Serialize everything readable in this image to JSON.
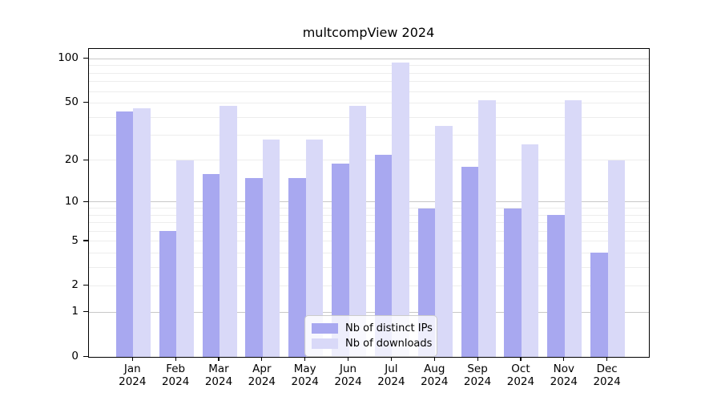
{
  "title": "multcompView 2024",
  "colors": {
    "ips_bar": "#a8a8f0",
    "downloads_bar": "#d9d9f8",
    "grid_minor": "#ededed",
    "grid_major": "#c8c8c8",
    "spine": "#000000",
    "background": "#ffffff"
  },
  "legend": {
    "items": [
      {
        "label": "Nb of distinct IPs",
        "color": "#a8a8f0"
      },
      {
        "label": "Nb of downloads",
        "color": "#d9d9f8"
      }
    ]
  },
  "axes": {
    "y_ticks": [
      0,
      1,
      2,
      5,
      10,
      20,
      50,
      100
    ],
    "x_tick_year": "2024",
    "x_tick_months": [
      "Jan",
      "Feb",
      "Mar",
      "Apr",
      "May",
      "Jun",
      "Jul",
      "Aug",
      "Sep",
      "Oct",
      "Nov",
      "Dec"
    ]
  },
  "chart_data": {
    "type": "bar",
    "title": "multcompView 2024",
    "categories": [
      "Jan 2024",
      "Feb 2024",
      "Mar 2024",
      "Apr 2024",
      "May 2024",
      "Jun 2024",
      "Jul 2024",
      "Aug 2024",
      "Sep 2024",
      "Oct 2024",
      "Nov 2024",
      "Dec 2024"
    ],
    "series": [
      {
        "name": "Nb of distinct IPs",
        "color": "#a8a8f0",
        "values": [
          44,
          6,
          16,
          15,
          15,
          19,
          22,
          9,
          18,
          9,
          8,
          4
        ]
      },
      {
        "name": "Nb of downloads",
        "color": "#d9d9f8",
        "values": [
          46,
          20,
          48,
          28,
          28,
          48,
          95,
          35,
          52,
          26,
          52,
          20
        ]
      }
    ],
    "xlabel": "",
    "ylabel": "",
    "yscale": "log1p",
    "yticks": [
      0,
      1,
      2,
      5,
      10,
      20,
      50,
      100
    ],
    "ylim": [
      0,
      117
    ],
    "grid": true,
    "grid_minor_values": [
      2,
      3,
      4,
      5,
      6,
      7,
      8,
      9,
      20,
      30,
      40,
      50,
      60,
      70,
      80,
      90
    ],
    "grid_major_values": [
      1,
      10,
      100
    ],
    "legend_position": "lower center"
  }
}
